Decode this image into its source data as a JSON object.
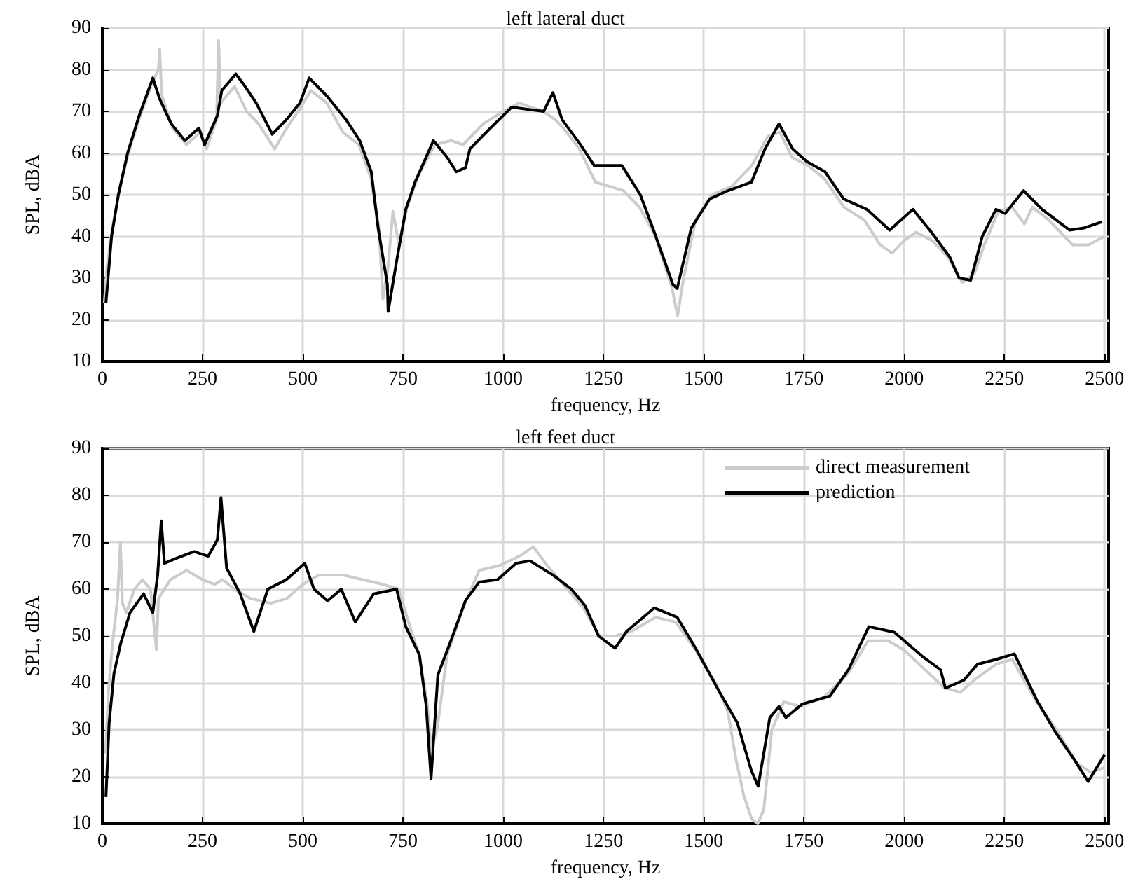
{
  "chart_data": [
    {
      "type": "line",
      "title": "left lateral duct",
      "xlabel": "frequency, Hz",
      "ylabel": "SPL, dBA",
      "xlim": [
        0,
        2510
      ],
      "xticks": [
        0,
        250,
        500,
        750,
        1000,
        1250,
        1500,
        1750,
        2000,
        2250,
        2500
      ],
      "ylim": [
        10,
        90
      ],
      "yticks": [
        10,
        20,
        30,
        40,
        50,
        60,
        70,
        80,
        90
      ],
      "grid": true,
      "legend": false,
      "marker": "none",
      "series": [
        {
          "color": "#cccccc",
          "x": [
            5,
            12,
            25,
            45,
            65,
            95,
            125,
            140,
            143,
            148,
            175,
            210,
            245,
            260,
            285,
            290,
            295,
            330,
            360,
            390,
            430,
            460,
            495,
            520,
            560,
            600,
            640,
            670,
            690,
            700,
            712,
            725,
            740,
            760,
            790,
            830,
            870,
            900,
            950,
            1000,
            1040,
            1100,
            1130,
            1150,
            1190,
            1230,
            1300,
            1340,
            1380,
            1420,
            1435,
            1450,
            1480,
            1520,
            1570,
            1620,
            1660,
            1690,
            1720,
            1760,
            1800,
            1850,
            1900,
            1940,
            1970,
            2000,
            2030,
            2070,
            2110,
            2145,
            2175,
            2200,
            2235,
            2270,
            2300,
            2320,
            2360,
            2420,
            2460,
            2500
          ],
          "values": [
            24,
            33,
            42,
            52,
            60,
            69,
            77,
            80,
            85,
            74,
            66,
            62,
            65,
            61,
            68,
            87,
            72,
            76,
            70,
            67,
            61,
            66,
            71,
            75,
            72,
            65,
            62,
            54,
            42,
            25,
            32,
            46,
            38,
            47,
            55,
            62,
            63,
            62,
            67,
            70,
            72,
            70,
            68,
            66,
            61,
            53,
            51,
            47,
            40,
            28,
            21,
            30,
            44,
            50,
            52,
            57,
            64,
            65,
            59,
            57,
            54,
            47,
            44,
            38,
            36,
            39,
            41,
            39,
            35,
            29,
            31,
            38,
            46,
            47,
            43,
            47,
            44,
            38,
            38,
            40
          ]
        },
        {
          "color": "#000000",
          "x": [
            9,
            23,
            40,
            63,
            92,
            126,
            143,
            172,
            206,
            241,
            255,
            287,
            298,
            333,
            356,
            384,
            424,
            459,
            493,
            516,
            562,
            608,
            642,
            671,
            688,
            711,
            713,
            734,
            757,
            780,
            826,
            860,
            883,
            906,
            917,
            963,
            1021,
            1101,
            1124,
            1147,
            1193,
            1227,
            1296,
            1342,
            1377,
            1423,
            1434,
            1469,
            1515,
            1561,
            1619,
            1653,
            1688,
            1722,
            1757,
            1803,
            1849,
            1907,
            1964,
            2022,
            2068,
            2114,
            2137,
            2166,
            2195,
            2229,
            2252,
            2298,
            2344,
            2413,
            2448,
            2494
          ],
          "values": [
            24,
            40,
            50,
            60,
            69,
            78,
            73,
            67,
            63,
            66,
            62,
            69,
            75,
            79,
            76,
            72,
            64.5,
            68,
            72,
            78,
            73.5,
            68,
            63,
            55.5,
            42,
            28.5,
            22,
            34,
            46.5,
            53,
            63,
            59,
            55.5,
            56.5,
            61,
            65.5,
            71,
            70,
            74.5,
            68,
            62,
            57,
            57,
            50,
            41,
            28.5,
            27.5,
            42,
            49,
            51,
            53,
            61,
            67,
            61,
            58,
            55.5,
            49,
            46.5,
            41.5,
            46.5,
            41,
            35,
            30,
            29.5,
            40,
            46.5,
            45.5,
            51,
            46.5,
            41.5,
            42,
            43.5
          ]
        }
      ]
    },
    {
      "type": "line",
      "title": "left feet duct",
      "xlabel": "frequency, Hz",
      "ylabel": "SPL, dBA",
      "xlim": [
        0,
        2510
      ],
      "xticks": [
        0,
        250,
        500,
        750,
        1000,
        1250,
        1500,
        1750,
        2000,
        2250,
        2500
      ],
      "ylim": [
        10,
        90
      ],
      "yticks": [
        10,
        20,
        30,
        40,
        50,
        60,
        70,
        80,
        90
      ],
      "grid": true,
      "legend": "top right",
      "marker": "none",
      "series": [
        {
          "name": "direct measurement",
          "color": "#cccccc",
          "x": [
            8,
            15,
            25,
            38,
            45,
            50,
            60,
            80,
            100,
            120,
            135,
            140,
            170,
            210,
            250,
            280,
            300,
            330,
            370,
            420,
            460,
            500,
            540,
            600,
            650,
            700,
            740,
            760,
            790,
            810,
            820,
            835,
            860,
            900,
            940,
            990,
            1040,
            1075,
            1110,
            1160,
            1200,
            1240,
            1280,
            1320,
            1380,
            1430,
            1480,
            1530,
            1560,
            1580,
            1600,
            1620,
            1635,
            1650,
            1670,
            1700,
            1740,
            1800,
            1860,
            1910,
            1960,
            2000,
            2050,
            2100,
            2140,
            2180,
            2230,
            2270,
            2330,
            2380,
            2430,
            2465,
            2500
          ],
          "values": [
            25,
            38,
            48,
            58,
            70,
            57,
            55,
            60,
            62,
            60,
            47,
            58,
            62,
            64,
            62,
            61,
            62,
            60,
            58,
            57,
            58,
            61,
            63,
            63,
            62,
            61,
            60,
            54,
            46,
            36,
            26,
            30,
            46,
            56,
            64,
            65,
            67,
            69,
            65,
            60,
            56,
            50,
            50,
            51,
            54,
            53,
            47,
            40,
            34,
            24,
            16,
            11,
            10,
            13,
            30,
            36,
            35,
            37,
            42,
            49,
            49,
            47,
            43,
            39,
            38,
            41,
            44,
            45,
            36,
            30,
            23,
            21,
            22
          ]
        },
        {
          "name": "prediction",
          "color": "#000000",
          "x": [
            9,
            17,
            29,
            46,
            69,
            103,
            126,
            138,
            147,
            155,
            183,
            229,
            264,
            287,
            296,
            310,
            344,
            378,
            413,
            459,
            505,
            528,
            562,
            596,
            631,
            677,
            734,
            757,
            791,
            808,
            820,
            837,
            872,
            906,
            940,
            986,
            1032,
            1067,
            1124,
            1170,
            1204,
            1238,
            1279,
            1308,
            1377,
            1434,
            1480,
            1538,
            1584,
            1619,
            1636,
            1665,
            1688,
            1705,
            1746,
            1815,
            1861,
            1912,
            1976,
            2045,
            2091,
            2103,
            2149,
            2183,
            2229,
            2275,
            2333,
            2379,
            2425,
            2459,
            2500
          ],
          "values": [
            15.7,
            31.5,
            42,
            48.5,
            55,
            59,
            55,
            63,
            74.5,
            65.5,
            66.5,
            68,
            67,
            70.5,
            79.5,
            64.5,
            59,
            51,
            60,
            62,
            65.5,
            60,
            57.5,
            60,
            53,
            59,
            60,
            52,
            46,
            35,
            19.6,
            41.7,
            49.6,
            57.6,
            61.5,
            62,
            65.5,
            66,
            63,
            60,
            56.5,
            50,
            47.4,
            51,
            56,
            54,
            47.4,
            38.3,
            31.5,
            21.3,
            18,
            32.6,
            35,
            32.6,
            35.5,
            37.2,
            42.8,
            52,
            50.8,
            45.7,
            42.8,
            38.9,
            40.6,
            44,
            45,
            46.2,
            36,
            29.3,
            23.6,
            19,
            24.7
          ]
        }
      ]
    }
  ]
}
